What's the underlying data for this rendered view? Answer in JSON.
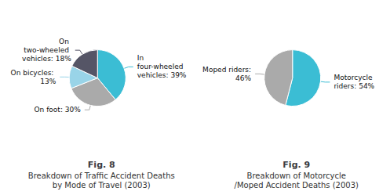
{
  "chart_data": [
    {
      "type": "pie",
      "title": "Fig. 8",
      "subtitle": [
        "Breakdown of Traffic Accident Deaths",
        "by Mode of Travel (2003)"
      ],
      "categories": [
        "In four-wheeled vehicles",
        "On foot",
        "On bicycles",
        "On two-wheeled vehicles"
      ],
      "values": [
        39,
        30,
        13,
        18
      ],
      "value_labels": [
        "In four-wheeled vehicles: 39%",
        "On foot: 30%",
        "On bicycles: 13%",
        "On two-wheeled vehicles: 18%"
      ],
      "colors": [
        "#3bbdd4",
        "#aaaaaa",
        "#99d4e8",
        "#555566"
      ],
      "data_labels": true
    },
    {
      "type": "pie",
      "title": "Fig. 9",
      "subtitle": [
        "Breakdown of Motorcycle",
        "/Moped Accident Deaths (2003)"
      ],
      "categories": [
        "Motorcycle riders",
        "Moped riders"
      ],
      "values": [
        54,
        46
      ],
      "value_labels": [
        "Motorcycle riders: 54%",
        "Moped riders: 46%"
      ],
      "colors": [
        "#3bbdd4",
        "#aaaaaa"
      ],
      "data_labels": true
    }
  ]
}
